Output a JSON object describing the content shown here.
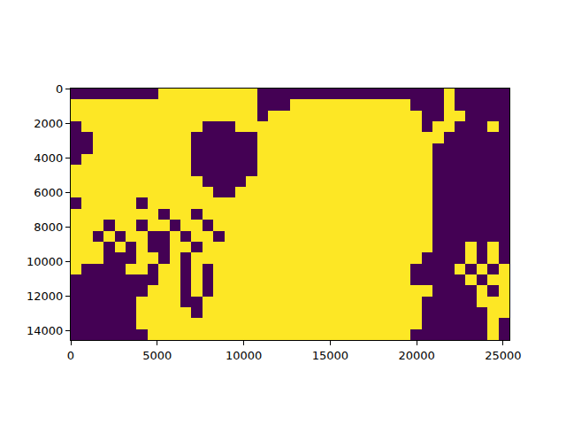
{
  "chart_data": {
    "type": "heatmap",
    "xlim": [
      0,
      25360
    ],
    "ylim": [
      14560,
      0
    ],
    "xticks": [
      0,
      5000,
      10000,
      15000,
      20000,
      25000
    ],
    "yticks": [
      0,
      2000,
      4000,
      6000,
      8000,
      10000,
      12000,
      14000
    ],
    "colors": [
      "#440154",
      "#fde725"
    ],
    "grid": false,
    "cells": [
      [
        0,
        0,
        0,
        0,
        0,
        0,
        0,
        0,
        1,
        1,
        1,
        1,
        1,
        1,
        1,
        1,
        1,
        0,
        0,
        0,
        0,
        0,
        0,
        0,
        0,
        0,
        0,
        0,
        0,
        0,
        0,
        0,
        0,
        0,
        1,
        0,
        0,
        0,
        0,
        0
      ],
      [
        1,
        1,
        1,
        1,
        1,
        1,
        1,
        1,
        1,
        1,
        1,
        1,
        1,
        1,
        1,
        1,
        1,
        0,
        0,
        0,
        1,
        1,
        1,
        1,
        1,
        1,
        1,
        1,
        1,
        1,
        1,
        0,
        0,
        0,
        1,
        0,
        0,
        0,
        0,
        0
      ],
      [
        1,
        1,
        1,
        1,
        1,
        1,
        1,
        1,
        1,
        1,
        1,
        1,
        1,
        1,
        1,
        1,
        1,
        0,
        1,
        1,
        1,
        1,
        1,
        1,
        1,
        1,
        1,
        1,
        1,
        1,
        1,
        1,
        0,
        0,
        1,
        1,
        0,
        0,
        0,
        0
      ],
      [
        0,
        1,
        1,
        1,
        1,
        1,
        1,
        1,
        1,
        1,
        1,
        1,
        0,
        0,
        0,
        1,
        1,
        1,
        1,
        1,
        1,
        1,
        1,
        1,
        1,
        1,
        1,
        1,
        1,
        1,
        1,
        1,
        0,
        1,
        1,
        0,
        0,
        0,
        1,
        0
      ],
      [
        0,
        0,
        1,
        1,
        1,
        1,
        1,
        1,
        1,
        1,
        1,
        0,
        0,
        0,
        0,
        0,
        0,
        1,
        1,
        1,
        1,
        1,
        1,
        1,
        1,
        1,
        1,
        1,
        1,
        1,
        1,
        1,
        1,
        1,
        0,
        0,
        0,
        0,
        0,
        0
      ],
      [
        0,
        0,
        1,
        1,
        1,
        1,
        1,
        1,
        1,
        1,
        1,
        0,
        0,
        0,
        0,
        0,
        0,
        1,
        1,
        1,
        1,
        1,
        1,
        1,
        1,
        1,
        1,
        1,
        1,
        1,
        1,
        1,
        1,
        0,
        0,
        0,
        0,
        0,
        0,
        0
      ],
      [
        0,
        1,
        1,
        1,
        1,
        1,
        1,
        1,
        1,
        1,
        1,
        0,
        0,
        0,
        0,
        0,
        0,
        1,
        1,
        1,
        1,
        1,
        1,
        1,
        1,
        1,
        1,
        1,
        1,
        1,
        1,
        1,
        1,
        0,
        0,
        0,
        0,
        0,
        0,
        0
      ],
      [
        1,
        1,
        1,
        1,
        1,
        1,
        1,
        1,
        1,
        1,
        1,
        0,
        0,
        0,
        0,
        0,
        0,
        1,
        1,
        1,
        1,
        1,
        1,
        1,
        1,
        1,
        1,
        1,
        1,
        1,
        1,
        1,
        1,
        0,
        0,
        0,
        0,
        0,
        0,
        0
      ],
      [
        1,
        1,
        1,
        1,
        1,
        1,
        1,
        1,
        1,
        1,
        1,
        1,
        0,
        0,
        0,
        0,
        1,
        1,
        1,
        1,
        1,
        1,
        1,
        1,
        1,
        1,
        1,
        1,
        1,
        1,
        1,
        1,
        1,
        0,
        0,
        0,
        0,
        0,
        0,
        0
      ],
      [
        1,
        1,
        1,
        1,
        1,
        1,
        1,
        1,
        1,
        1,
        1,
        1,
        1,
        0,
        0,
        1,
        1,
        1,
        1,
        1,
        1,
        1,
        1,
        1,
        1,
        1,
        1,
        1,
        1,
        1,
        1,
        1,
        1,
        0,
        0,
        0,
        0,
        0,
        0,
        0
      ],
      [
        0,
        1,
        1,
        1,
        1,
        1,
        0,
        1,
        1,
        1,
        1,
        1,
        1,
        1,
        1,
        1,
        1,
        1,
        1,
        1,
        1,
        1,
        1,
        1,
        1,
        1,
        1,
        1,
        1,
        1,
        1,
        1,
        1,
        0,
        0,
        0,
        0,
        0,
        0,
        0
      ],
      [
        1,
        1,
        1,
        1,
        1,
        1,
        1,
        1,
        0,
        1,
        1,
        0,
        1,
        1,
        1,
        1,
        1,
        1,
        1,
        1,
        1,
        1,
        1,
        1,
        1,
        1,
        1,
        1,
        1,
        1,
        1,
        1,
        1,
        0,
        0,
        0,
        0,
        0,
        0,
        0
      ],
      [
        1,
        1,
        1,
        0,
        1,
        1,
        0,
        1,
        1,
        0,
        1,
        1,
        0,
        1,
        1,
        1,
        1,
        1,
        1,
        1,
        1,
        1,
        1,
        1,
        1,
        1,
        1,
        1,
        1,
        1,
        1,
        1,
        1,
        0,
        0,
        0,
        0,
        0,
        0,
        0
      ],
      [
        1,
        1,
        0,
        1,
        0,
        1,
        1,
        0,
        0,
        1,
        0,
        1,
        1,
        0,
        1,
        1,
        1,
        1,
        1,
        1,
        1,
        1,
        1,
        1,
        1,
        1,
        1,
        1,
        1,
        1,
        1,
        1,
        1,
        0,
        0,
        0,
        0,
        0,
        0,
        0
      ],
      [
        1,
        1,
        1,
        0,
        1,
        0,
        1,
        0,
        0,
        1,
        1,
        0,
        1,
        1,
        1,
        1,
        1,
        1,
        1,
        1,
        1,
        1,
        1,
        1,
        1,
        1,
        1,
        1,
        1,
        1,
        1,
        1,
        1,
        0,
        0,
        0,
        1,
        0,
        1,
        0
      ],
      [
        1,
        1,
        1,
        0,
        0,
        0,
        1,
        1,
        0,
        1,
        0,
        1,
        1,
        1,
        1,
        1,
        1,
        1,
        1,
        1,
        1,
        1,
        1,
        1,
        1,
        1,
        1,
        1,
        1,
        1,
        1,
        1,
        0,
        0,
        0,
        0,
        1,
        0,
        1,
        0
      ],
      [
        1,
        0,
        0,
        0,
        0,
        1,
        1,
        0,
        1,
        1,
        0,
        1,
        0,
        1,
        1,
        1,
        1,
        1,
        1,
        1,
        1,
        1,
        1,
        1,
        1,
        1,
        1,
        1,
        1,
        1,
        1,
        0,
        0,
        0,
        0,
        1,
        0,
        1,
        0,
        1
      ],
      [
        0,
        0,
        0,
        0,
        0,
        0,
        0,
        0,
        1,
        1,
        0,
        1,
        0,
        1,
        1,
        1,
        1,
        1,
        1,
        1,
        1,
        1,
        1,
        1,
        1,
        1,
        1,
        1,
        1,
        1,
        1,
        0,
        0,
        0,
        0,
        0,
        1,
        0,
        1,
        1
      ],
      [
        0,
        0,
        0,
        0,
        0,
        0,
        0,
        1,
        1,
        1,
        0,
        1,
        0,
        1,
        1,
        1,
        1,
        1,
        1,
        1,
        1,
        1,
        1,
        1,
        1,
        1,
        1,
        1,
        1,
        1,
        1,
        1,
        1,
        0,
        0,
        0,
        0,
        1,
        0,
        1
      ],
      [
        0,
        0,
        0,
        0,
        0,
        0,
        1,
        1,
        1,
        1,
        0,
        0,
        1,
        1,
        1,
        1,
        1,
        1,
        1,
        1,
        1,
        1,
        1,
        1,
        1,
        1,
        1,
        1,
        1,
        1,
        1,
        1,
        0,
        0,
        0,
        0,
        0,
        1,
        1,
        1
      ],
      [
        0,
        0,
        0,
        0,
        0,
        0,
        1,
        1,
        1,
        1,
        1,
        0,
        1,
        1,
        1,
        1,
        1,
        1,
        1,
        1,
        1,
        1,
        1,
        1,
        1,
        1,
        1,
        1,
        1,
        1,
        1,
        1,
        0,
        0,
        0,
        0,
        0,
        0,
        1,
        1
      ],
      [
        0,
        0,
        0,
        0,
        0,
        0,
        1,
        1,
        1,
        1,
        1,
        1,
        1,
        1,
        1,
        1,
        1,
        1,
        1,
        1,
        1,
        1,
        1,
        1,
        1,
        1,
        1,
        1,
        1,
        1,
        1,
        1,
        0,
        0,
        0,
        0,
        0,
        0,
        1,
        0
      ],
      [
        0,
        0,
        0,
        0,
        0,
        0,
        0,
        1,
        1,
        1,
        1,
        1,
        1,
        1,
        1,
        1,
        1,
        1,
        1,
        1,
        1,
        1,
        1,
        1,
        1,
        1,
        1,
        1,
        1,
        1,
        1,
        0,
        0,
        0,
        0,
        0,
        0,
        0,
        1,
        0
      ]
    ]
  }
}
